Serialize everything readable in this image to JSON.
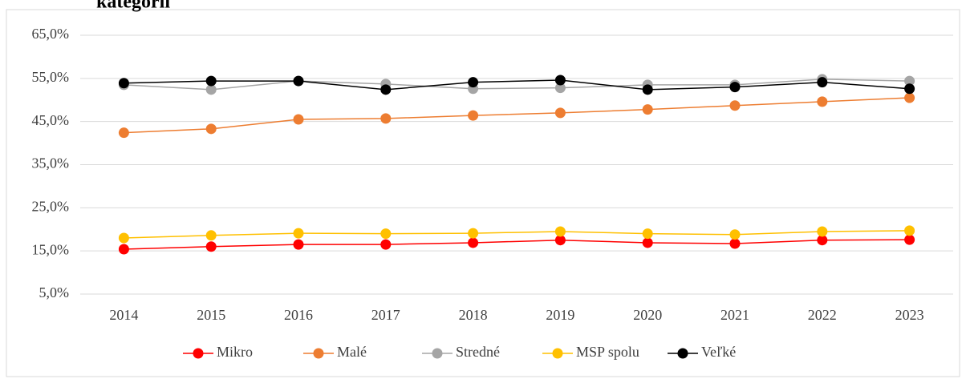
{
  "chart_data": {
    "type": "line",
    "title": "kategorii",
    "categories": [
      "2014",
      "2015",
      "2016",
      "2017",
      "2018",
      "2019",
      "2020",
      "2021",
      "2022",
      "2023"
    ],
    "series": [
      {
        "name": "Mikro",
        "color": "#ff0000",
        "values": [
          15.4,
          16.0,
          16.5,
          16.5,
          16.9,
          17.5,
          16.9,
          16.7,
          17.5,
          17.6
        ]
      },
      {
        "name": "Malé",
        "color": "#ed7d31",
        "values": [
          42.4,
          43.3,
          45.5,
          45.7,
          46.4,
          47.0,
          47.8,
          48.7,
          49.6,
          50.5
        ]
      },
      {
        "name": "Stredné",
        "color": "#a5a5a5",
        "values": [
          53.5,
          52.4,
          54.4,
          53.7,
          52.6,
          52.8,
          53.5,
          53.5,
          54.8,
          54.4
        ]
      },
      {
        "name": "MSP spolu",
        "color": "#ffc000",
        "values": [
          18.0,
          18.6,
          19.1,
          19.0,
          19.1,
          19.5,
          19.0,
          18.8,
          19.5,
          19.7
        ]
      },
      {
        "name": "Veľké",
        "color": "#000000",
        "values": [
          53.9,
          54.4,
          54.4,
          52.4,
          54.1,
          54.6,
          52.4,
          53.0,
          54.1,
          52.6
        ]
      }
    ],
    "ylim": [
      5,
      65
    ],
    "yticks": [
      {
        "value": 5,
        "label": "5,0%"
      },
      {
        "value": 15,
        "label": "15,0%"
      },
      {
        "value": 25,
        "label": "25,0%"
      },
      {
        "value": 35,
        "label": "35,0%"
      },
      {
        "value": 45,
        "label": "45,0%"
      },
      {
        "value": 55,
        "label": "55,0%"
      },
      {
        "value": 65,
        "label": "65,0%"
      }
    ],
    "grid": true,
    "legend": "bottom"
  }
}
